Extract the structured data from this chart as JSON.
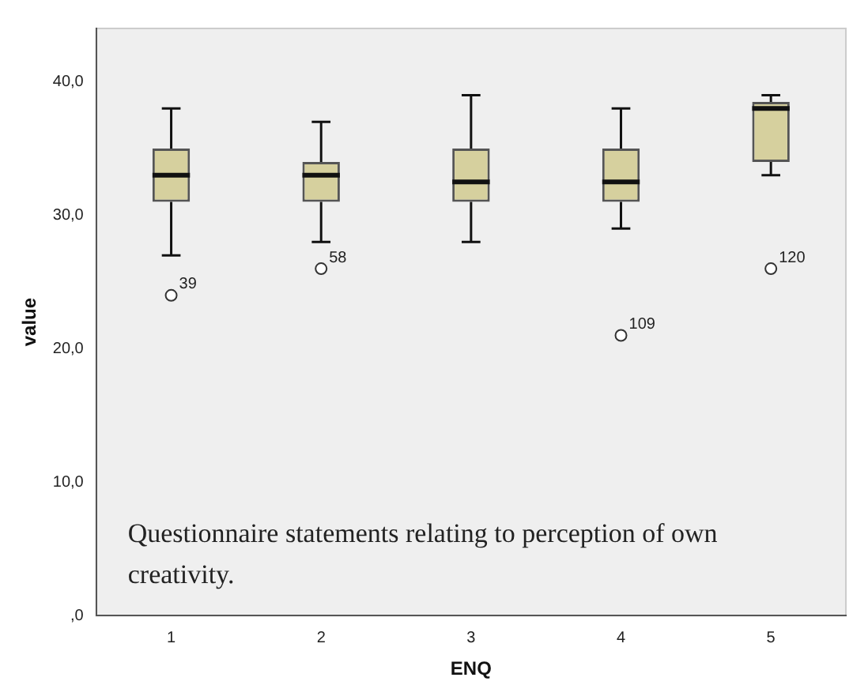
{
  "chart_data": {
    "type": "box",
    "xlabel": "ENQ",
    "ylabel": "value",
    "categories": [
      "1",
      "2",
      "3",
      "4",
      "5"
    ],
    "series": [
      {
        "color": "#d6d09e",
        "boxes": [
          {
            "low": 27,
            "q1": 31,
            "median": 33,
            "q3": 35,
            "high": 38,
            "outliers": [
              24
            ]
          },
          {
            "low": 28,
            "q1": 31,
            "median": 33,
            "q3": 34,
            "high": 37,
            "outliers": [
              26
            ]
          },
          {
            "low": 28,
            "q1": 31,
            "median": 32.5,
            "q3": 35,
            "high": 39
          },
          {
            "low": 29,
            "q1": 31,
            "median": 32.5,
            "q3": 35,
            "high": 38,
            "outliers": [
              21
            ]
          },
          {
            "low": 33,
            "q1": 34,
            "median": 38,
            "q3": 38.5,
            "high": 39,
            "outliers": [
              26
            ]
          }
        ]
      }
    ],
    "ylim": [
      0,
      44
    ],
    "yticks": [
      {
        "value": 0,
        "label": ",0"
      },
      {
        "value": 10,
        "label": "10,0"
      },
      {
        "value": 20,
        "label": "20,0"
      },
      {
        "value": 30,
        "label": "30,0"
      },
      {
        "value": 40,
        "label": "40,0"
      }
    ],
    "grid": false,
    "legend": false,
    "marker": "circle",
    "annotations": [
      "39",
      "58",
      "109",
      "120",
      "Questionnaire statements relating to perception of own creativity."
    ]
  }
}
